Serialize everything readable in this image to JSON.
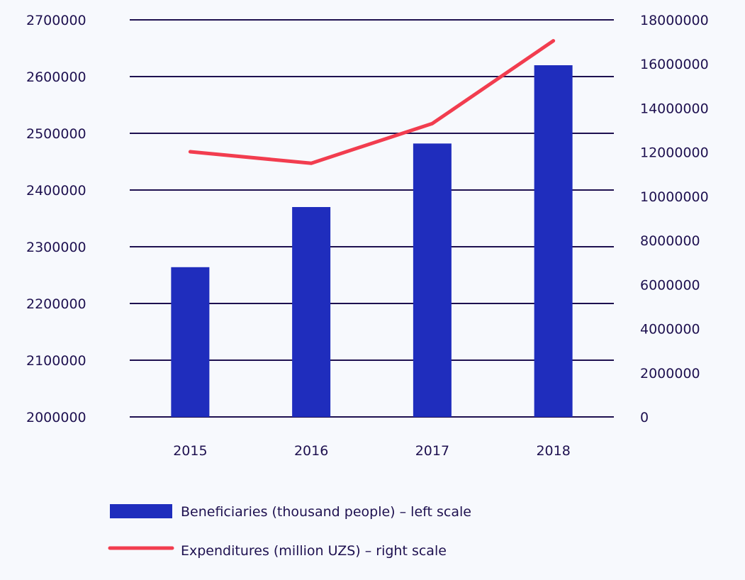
{
  "colors": {
    "background": "#f7f9fd",
    "bar": "#1f2dbd",
    "line": "#f23d4f",
    "grid": "#1e1150",
    "text": "#1e1150"
  },
  "chart_data": {
    "type": "bar",
    "categories": [
      "2015",
      "2016",
      "2017",
      "2018"
    ],
    "series": [
      {
        "name": "Beneficiaries (thousand people) – left scale",
        "type": "bar",
        "axis": "left",
        "values": [
          2264000,
          2370000,
          2482000,
          2620000
        ]
      },
      {
        "name": "Expenditures (million UZS) – right scale",
        "type": "line",
        "axis": "right",
        "values": [
          12020000,
          11500000,
          13300000,
          17050000
        ]
      }
    ],
    "y_left": {
      "ylim": [
        2000000,
        2700000
      ],
      "ticks": [
        "2000000",
        "2100000",
        "2200000",
        "2300000",
        "2400000",
        "2500000",
        "2600000",
        "2700000"
      ]
    },
    "y_right": {
      "ylim": [
        0,
        18000000
      ],
      "ticks": [
        "0",
        "2000000",
        "4000000",
        "6000000",
        "8000000",
        "10000000",
        "12000000",
        "14000000",
        "16000000",
        "18000000"
      ]
    },
    "grid": true,
    "legend_position": "bottom-left"
  }
}
